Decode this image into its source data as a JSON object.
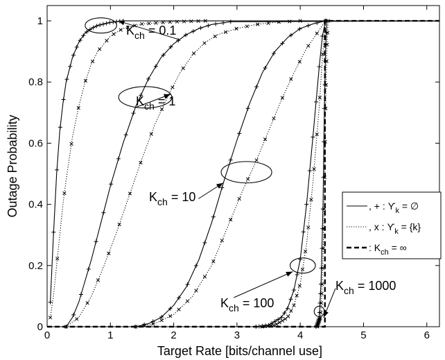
{
  "chart_data": {
    "type": "line",
    "xlabel": "Target Rate [bits/channel use]",
    "ylabel": "Outage Probability",
    "xlim": [
      0,
      6.2
    ],
    "ylim": [
      0,
      1.05
    ],
    "xticks": [
      0,
      1,
      2,
      3,
      4,
      5,
      6
    ],
    "yticks": [
      0,
      0.2,
      0.4,
      0.6,
      0.8,
      1
    ],
    "grid": false,
    "legend_position": "lower-right",
    "legend": [
      {
        "style": "solid",
        "marker": "+",
        "label": ", + : ϒ",
        "sub": "k",
        "tail": " = ∅"
      },
      {
        "style": "dotted",
        "marker": "x",
        "label": ", x : ϒ",
        "sub": "k",
        "tail": " = {k}"
      },
      {
        "style": "dashed",
        "marker": "",
        "label": ": K",
        "sub": "ch",
        "tail": " = ∞"
      }
    ],
    "series": [
      {
        "k": 0.1,
        "style": "solid",
        "marker": "+",
        "x": [
          0.05,
          0.1,
          0.15,
          0.2,
          0.25,
          0.3,
          0.4,
          0.5,
          0.6,
          0.7,
          0.8,
          0.9,
          1.0,
          1.2,
          6.2
        ],
        "y": [
          0.08,
          0.3,
          0.5,
          0.64,
          0.73,
          0.8,
          0.88,
          0.93,
          0.96,
          0.975,
          0.985,
          0.99,
          0.995,
          1.0,
          1.0
        ]
      },
      {
        "k": 0.1,
        "style": "dotted",
        "marker": "x",
        "x": [
          0.05,
          0.1,
          0.15,
          0.2,
          0.25,
          0.3,
          0.4,
          0.5,
          0.6,
          0.7,
          0.8,
          1.0,
          1.2,
          1.5,
          2.0,
          2.5,
          6.2
        ],
        "y": [
          0.03,
          0.1,
          0.2,
          0.3,
          0.4,
          0.48,
          0.62,
          0.72,
          0.8,
          0.86,
          0.9,
          0.95,
          0.975,
          0.99,
          0.997,
          1.0,
          1.0
        ]
      },
      {
        "k": 1,
        "style": "solid",
        "marker": "+",
        "x": [
          0.3,
          0.4,
          0.5,
          0.6,
          0.7,
          0.8,
          0.9,
          1.0,
          1.2,
          1.4,
          1.6,
          1.8,
          2.0,
          2.2,
          2.4,
          2.6,
          2.9,
          6.2
        ],
        "y": [
          0.0,
          0.03,
          0.08,
          0.15,
          0.22,
          0.3,
          0.38,
          0.46,
          0.6,
          0.72,
          0.81,
          0.88,
          0.925,
          0.955,
          0.975,
          0.988,
          0.997,
          1.0
        ]
      },
      {
        "k": 1,
        "style": "dotted",
        "marker": "x",
        "x": [
          0.3,
          0.5,
          0.7,
          0.9,
          1.1,
          1.3,
          1.5,
          1.7,
          1.9,
          2.1,
          2.3,
          2.5,
          2.7,
          3.0,
          3.3,
          3.6,
          4.0,
          6.2
        ],
        "y": [
          0.0,
          0.03,
          0.1,
          0.2,
          0.31,
          0.43,
          0.55,
          0.66,
          0.75,
          0.83,
          0.89,
          0.93,
          0.955,
          0.975,
          0.988,
          0.995,
          1.0,
          1.0
        ]
      },
      {
        "k": 10,
        "style": "solid",
        "marker": "+",
        "x": [
          1.4,
          1.6,
          1.8,
          2.0,
          2.2,
          2.4,
          2.6,
          2.8,
          3.0,
          3.2,
          3.4,
          3.6,
          3.8,
          4.0,
          4.2,
          4.4,
          6.2
        ],
        "y": [
          0.0,
          0.01,
          0.03,
          0.07,
          0.13,
          0.22,
          0.34,
          0.48,
          0.61,
          0.73,
          0.83,
          0.9,
          0.945,
          0.975,
          0.99,
          1.0,
          1.0
        ]
      },
      {
        "k": 10,
        "style": "dotted",
        "marker": "x",
        "x": [
          1.4,
          1.7,
          2.0,
          2.3,
          2.6,
          2.9,
          3.1,
          3.3,
          3.5,
          3.7,
          3.9,
          4.1,
          4.3,
          4.4,
          6.2
        ],
        "y": [
          0.0,
          0.01,
          0.04,
          0.1,
          0.2,
          0.35,
          0.45,
          0.54,
          0.64,
          0.74,
          0.83,
          0.91,
          0.97,
          1.0,
          1.0
        ]
      },
      {
        "k": 100,
        "style": "solid",
        "marker": "+",
        "x": [
          3.3,
          3.5,
          3.7,
          3.8,
          3.9,
          4.0,
          4.1,
          4.2,
          4.3,
          4.35,
          4.4,
          6.2
        ],
        "y": [
          0.0,
          0.005,
          0.03,
          0.06,
          0.12,
          0.22,
          0.4,
          0.62,
          0.85,
          0.95,
          1.0,
          1.0
        ]
      },
      {
        "k": 100,
        "style": "dotted",
        "marker": "x",
        "x": [
          3.4,
          3.6,
          3.8,
          3.9,
          4.0,
          4.1,
          4.2,
          4.3,
          4.35,
          4.4,
          6.2
        ],
        "y": [
          0.0,
          0.005,
          0.03,
          0.07,
          0.14,
          0.27,
          0.47,
          0.72,
          0.88,
          1.0,
          1.0
        ]
      },
      {
        "k": 1000,
        "style": "solid",
        "marker": "+",
        "x": [
          4.25,
          4.3,
          4.33,
          4.36,
          4.38,
          4.4,
          4.42,
          6.2
        ],
        "y": [
          0.0,
          0.03,
          0.15,
          0.4,
          0.7,
          0.9,
          1.0,
          1.0
        ]
      },
      {
        "k": 1000,
        "style": "dotted",
        "marker": "x",
        "x": [
          4.27,
          4.32,
          4.35,
          4.38,
          4.4,
          4.42,
          4.44,
          6.2
        ],
        "y": [
          0.0,
          0.03,
          0.15,
          0.4,
          0.7,
          0.9,
          1.0,
          1.0
        ]
      },
      {
        "k": "inf",
        "style": "dashed",
        "marker": "",
        "x": [
          0,
          4.39,
          4.39,
          6.2
        ],
        "y": [
          0,
          0,
          1,
          1
        ]
      }
    ],
    "annotations": [
      {
        "main": "K",
        "sub": "ch",
        "tail": " = 0.1",
        "ellipse": {
          "x": 0.85,
          "y": 0.985,
          "rx": 0.25,
          "ry": 0.025
        },
        "arrow_to": [
          1.12,
          1.0
        ]
      },
      {
        "main": "K",
        "sub": "ch",
        "tail": " = 1",
        "ellipse": {
          "x": 1.55,
          "y": 0.75,
          "rx": 0.42,
          "ry": 0.035
        },
        "arrow_to": [
          1.95,
          0.76
        ]
      },
      {
        "main": "K",
        "sub": "ch",
        "tail": " = 10",
        "ellipse": {
          "x": 3.15,
          "y": 0.505,
          "rx": 0.4,
          "ry": 0.035
        },
        "arrow_to": [
          2.78,
          0.47
        ]
      },
      {
        "main": "K",
        "sub": "ch",
        "tail": " = 100",
        "ellipse": {
          "x": 4.04,
          "y": 0.2,
          "rx": 0.2,
          "ry": 0.025
        },
        "arrow_to": [
          3.88,
          0.18
        ]
      },
      {
        "main": "K",
        "sub": "ch",
        "tail": " = 1000",
        "ellipse": {
          "x": 4.3,
          "y": 0.05,
          "rx": 0.08,
          "ry": 0.017
        },
        "arrow_to": [
          4.37,
          0.03
        ]
      }
    ]
  }
}
